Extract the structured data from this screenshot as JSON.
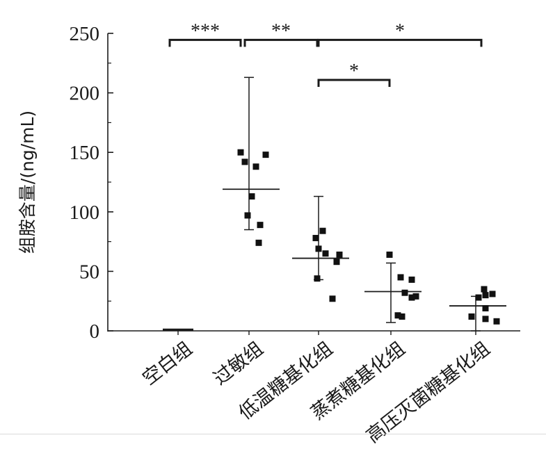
{
  "chart_data": {
    "type": "scatter",
    "ylabel": "组胺含量/(ng/mL)",
    "ylim": [
      0,
      250
    ],
    "yticks": [
      0,
      50,
      100,
      150,
      200,
      250
    ],
    "ytick_labels": [
      "0",
      "50",
      "100",
      "150",
      "200",
      "250"
    ],
    "categories": [
      "空白组",
      "过敏组",
      "低温糖基化组",
      "蒸煮糖基化组",
      "高压灭菌糖基化组"
    ],
    "groups": [
      {
        "category": "空白组",
        "mean": 1,
        "sd_low": 1,
        "sd_high": 1,
        "points": [
          1
        ]
      },
      {
        "category": "过敏组",
        "mean": 119,
        "sd_low": 85,
        "sd_high": 213,
        "points": [
          150,
          142,
          138,
          148,
          113,
          97,
          89,
          74
        ]
      },
      {
        "category": "低温糖基化组",
        "mean": 61,
        "sd_low": 43,
        "sd_high": 113,
        "points": [
          78,
          84,
          69,
          65,
          58,
          64,
          44,
          27
        ]
      },
      {
        "category": "蒸煮糖基化组",
        "mean": 33,
        "sd_low": 7,
        "sd_high": 57,
        "points": [
          64,
          45,
          43,
          32,
          28,
          29,
          13,
          12
        ]
      },
      {
        "category": "高压灭菌糖基化组",
        "mean": 21,
        "sd_low": 0,
        "sd_high": 29,
        "points": [
          35,
          31,
          28,
          30,
          19,
          12,
          10,
          8
        ]
      }
    ],
    "significance": [
      {
        "from": "空白组",
        "to": "过敏组",
        "label": "***",
        "y": 248
      },
      {
        "from": "过敏组",
        "to": "低温糖基化组",
        "label": "**",
        "y": 248
      },
      {
        "from": "低温糖基化组",
        "to": "高压灭菌糖基化组",
        "label": "*",
        "y": 248
      },
      {
        "from": "低温糖基化组",
        "to": "蒸煮糖基化组",
        "label": "*",
        "y": 212
      }
    ],
    "grid": false,
    "colors": {
      "ink": "#1a1a1a",
      "marker": "#111111"
    }
  }
}
